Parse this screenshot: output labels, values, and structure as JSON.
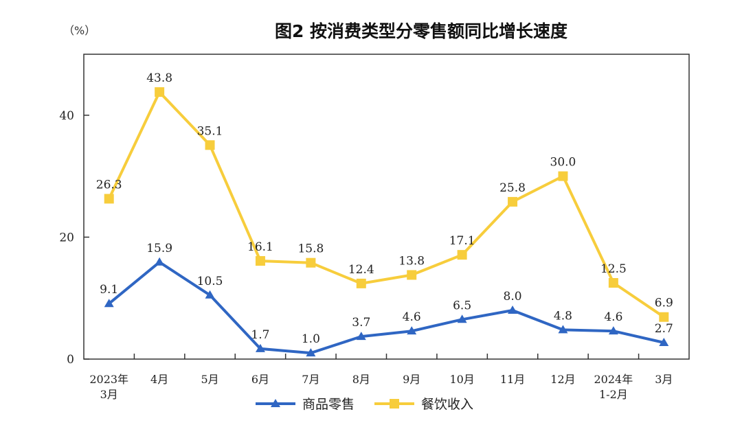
{
  "chart_data": {
    "type": "line",
    "title": "图2  按消费类型分零售额同比增长速度",
    "unit": "（%）",
    "categories": [
      [
        "2023年",
        "3月"
      ],
      [
        "4月"
      ],
      [
        "5月"
      ],
      [
        "6月"
      ],
      [
        "7月"
      ],
      [
        "8月"
      ],
      [
        "9月"
      ],
      [
        "10月"
      ],
      [
        "11月"
      ],
      [
        "12月"
      ],
      [
        "2024年",
        "1-2月"
      ],
      [
        "3月"
      ]
    ],
    "series": [
      {
        "name": "商品零售",
        "color": "#2f66c3",
        "marker": "triangle",
        "values": [
          9.1,
          15.9,
          10.5,
          1.7,
          1.0,
          3.7,
          4.6,
          6.5,
          8.0,
          4.8,
          4.6,
          2.7
        ],
        "labels": [
          "9.1",
          "15.9",
          "10.5",
          "1.7",
          "1.0",
          "3.7",
          "4.6",
          "6.5",
          "8.0",
          "4.8",
          "4.6",
          "2.7"
        ]
      },
      {
        "name": "餐饮收入",
        "color": "#f7cd3c",
        "marker": "square",
        "values": [
          26.3,
          43.8,
          35.1,
          16.1,
          15.8,
          12.4,
          13.8,
          17.1,
          25.8,
          30.0,
          12.5,
          6.9
        ],
        "labels": [
          "26.3",
          "43.8",
          "35.1",
          "16.1",
          "15.8",
          "12.4",
          "13.8",
          "17.1",
          "25.8",
          "30.0",
          "12.5",
          "6.9"
        ]
      }
    ],
    "ylim": [
      0,
      50
    ],
    "yticks": [
      "0",
      "20",
      "40"
    ],
    "ytick_values": [
      0,
      20,
      40
    ],
    "grid": false,
    "legend_position": "bottom-center"
  }
}
